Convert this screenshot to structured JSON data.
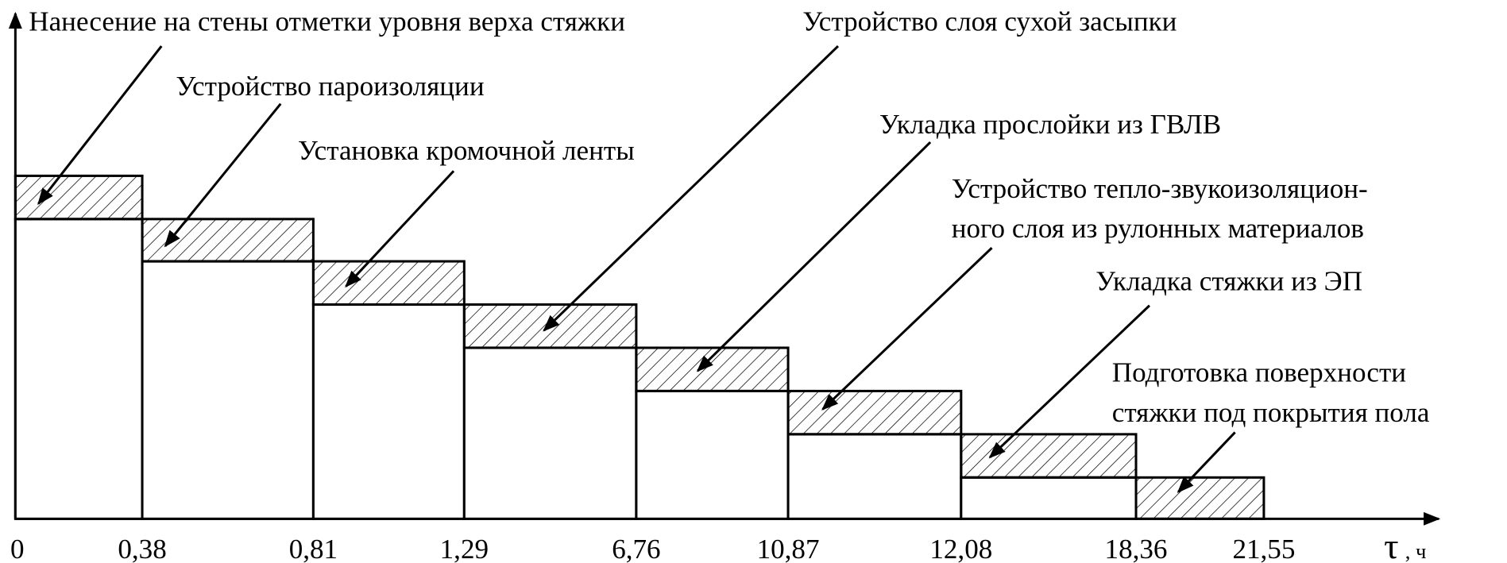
{
  "labels": {
    "marking": "Нанесение на стены отметки уровня верха стяжки",
    "vapor": "Устройство пароизоляции",
    "edge_tape": "Установка кромочной ленты",
    "dry_fill": "Устройство слоя сухой засыпки",
    "gvlv": "Укладка прослойки из ГВЛВ",
    "insulation": [
      "Устройство тепло-звукоизоляцион-",
      "ного слоя из рулонных материалов"
    ],
    "screed": "Укладка стяжки из ЭП",
    "surface": [
      "Подготовка поверхности",
      "стяжки под покрытия пола"
    ]
  },
  "x_axis": {
    "ticks": [
      "0",
      "0,38",
      "0,81",
      "1,29",
      "6,76",
      "10,87",
      "12,08",
      "18,36",
      "21,55"
    ],
    "symbol": "τ",
    "unit": ", ч"
  }
}
